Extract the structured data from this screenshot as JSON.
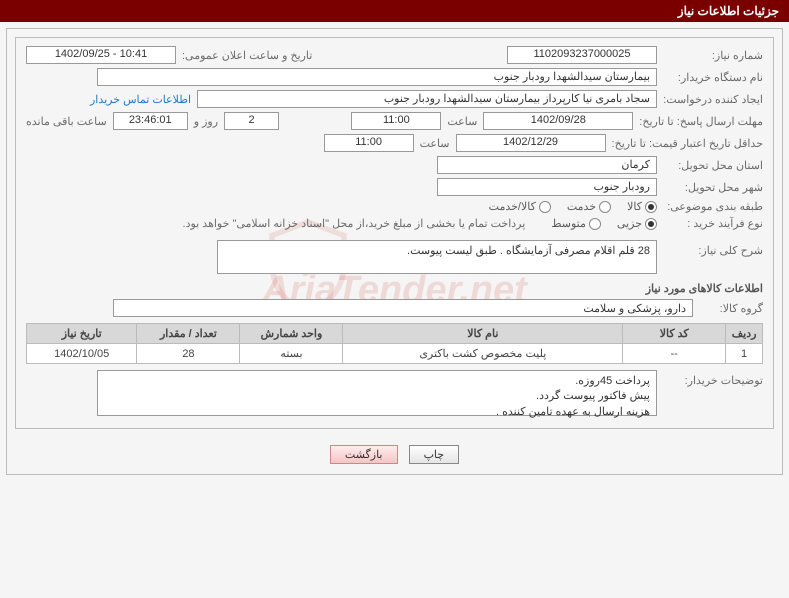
{
  "header": {
    "title": "جزئیات اطلاعات نیاز"
  },
  "fields": {
    "need_no_label": "شماره نیاز:",
    "need_no": "1102093237000025",
    "announce_label": "تاریخ و ساعت اعلان عمومی:",
    "announce": "10:41 - 1402/09/25",
    "buyer_org_label": "نام دستگاه خریدار:",
    "buyer_org": "بیمارستان سیدالشهدا رودبار جنوب",
    "requester_label": "ایجاد کننده درخواست:",
    "requester": "سجاد بامری نیا کارپرداز بیمارستان سیدالشهدا رودبار جنوب",
    "contact_link": "اطلاعات تماس خریدار",
    "deadline_label": "مهلت ارسال پاسخ: تا تاریخ:",
    "deadline_date": "1402/09/28",
    "time_label": "ساعت",
    "deadline_time": "11:00",
    "days_val": "2",
    "days_suffix": "روز و",
    "countdown": "23:46:01",
    "countdown_suffix": "ساعت باقی مانده",
    "validity_label": "حداقل تاریخ اعتبار قیمت: تا تاریخ:",
    "validity_date": "1402/12/29",
    "validity_time": "11:00",
    "province_label": "استان محل تحویل:",
    "province": "کرمان",
    "city_label": "شهر محل تحویل:",
    "city": "رودبار جنوب",
    "category_label": "طبقه بندی موضوعی:",
    "cat_goods": "کالا",
    "cat_service": "خدمت",
    "cat_both": "کالا/خدمت",
    "process_label": "نوع فرآیند خرید :",
    "proc_partial": "جزیی",
    "proc_medium": "متوسط",
    "process_note": "پرداخت تمام یا بخشی از مبلغ خرید،از محل \"اسناد خزانه اسلامی\" خواهد بود.",
    "summary_label": "شرح کلی نیاز:",
    "summary_text": "28 قلم اقلام مصرفی آزمایشگاه .\nطبق لیست پیوست.",
    "items_title": "اطلاعات کالاهای مورد نیاز",
    "group_label": "گروه کالا:",
    "group_value": "دارو، پزشکی و سلامت",
    "buyer_notes_label": "توضیحات خریدار:",
    "buyer_notes": "پرداخت 45روزه.\nپیش فاکتور پیوست گردد.\nهزینه ارسال به عهده تامین کننده ."
  },
  "table": {
    "columns": [
      "ردیف",
      "کد کالا",
      "نام کالا",
      "واحد شمارش",
      "تعداد / مقدار",
      "تاریخ نیاز"
    ],
    "col_widths": [
      "5%",
      "14%",
      "38%",
      "14%",
      "14%",
      "15%"
    ],
    "rows": [
      [
        "1",
        "--",
        "پلیت مخصوص کشت باکتری",
        "بسته",
        "28",
        "1402/10/05"
      ]
    ]
  },
  "buttons": {
    "print": "چاپ",
    "back": "بازگشت"
  },
  "colors": {
    "header_bg": "#7a0000",
    "border": "#bbbbbb",
    "table_header_bg": "#d8d8d8",
    "link": "#2277cc"
  }
}
